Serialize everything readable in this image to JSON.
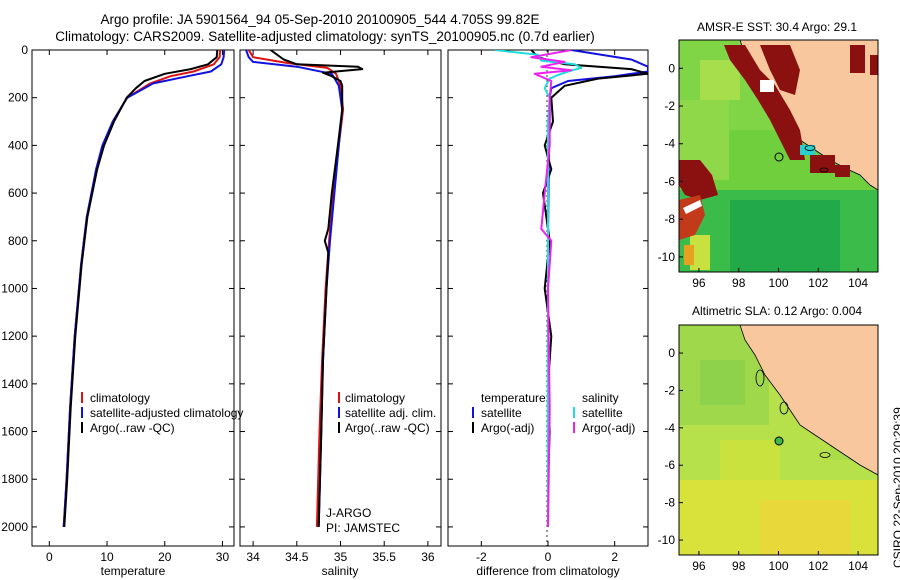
{
  "header": {
    "title_line1": "Argo profile: JA 5901564_94 05-Sep-2010 20100905_544 4.705S 99.82E",
    "title_line2": "Climatology: CARS2009. Satellite-adjusted climatology: synTS_20100905.nc (0.7d earlier)"
  },
  "footer": {
    "stamp": "CSIRO 22-Sep-2010 20:29:39"
  },
  "colors": {
    "climatology": "#dd1111",
    "satellite": "#1111dd",
    "argo": "#000000",
    "satellite_salinity_diff": "#22dddd",
    "argo_adj_diff": "#ee22ee",
    "land": "#f9c79e"
  },
  "chart_data": [
    {
      "type": "line",
      "panel": "temperature",
      "xlabel": "temperature",
      "ylabel": "",
      "xlim": [
        -3,
        32
      ],
      "ylim": [
        2080,
        0
      ],
      "y_reversed": true,
      "xticks": [
        0,
        10,
        20,
        30
      ],
      "xtick_labels": [
        "0",
        "10",
        "20",
        "30"
      ],
      "yticks": [
        0,
        200,
        400,
        600,
        800,
        1000,
        1200,
        1400,
        1600,
        1800,
        2000
      ],
      "ytick_labels": [
        "0",
        "200",
        "400",
        "600",
        "800",
        "1000",
        "1200",
        "1400",
        "1600",
        "1800",
        "2000"
      ],
      "legend": [
        "climatology",
        "satellite-adjusted climatology",
        "Argo(..raw -QC)"
      ],
      "series": [
        {
          "name": "climatology",
          "color": "#dd1111",
          "depth": [
            0,
            30,
            60,
            90,
            110,
            140,
            200,
            300,
            400,
            500,
            700,
            900,
            1200,
            1500,
            1800,
            2000
          ],
          "values": [
            29.6,
            29.5,
            28.5,
            25,
            21,
            17.5,
            13.5,
            11,
            9.3,
            8.2,
            6.5,
            5.5,
            4.4,
            3.6,
            3,
            2.5
          ]
        },
        {
          "name": "satellite-adjusted climatology",
          "color": "#1111dd",
          "depth": [
            0,
            30,
            60,
            90,
            110,
            140,
            200,
            300,
            400,
            500,
            700,
            900,
            1200,
            1500,
            1800,
            2000
          ],
          "values": [
            30.3,
            30.2,
            29.8,
            28,
            24,
            18,
            13.5,
            11,
            9.2,
            8.1,
            6.5,
            5.5,
            4.4,
            3.6,
            3,
            2.5
          ]
        },
        {
          "name": "Argo(..raw -QC)",
          "color": "#000000",
          "depth": [
            0,
            30,
            60,
            80,
            100,
            130,
            160,
            200,
            300,
            400,
            500,
            700,
            900,
            1200,
            1500,
            1800,
            2000
          ],
          "values": [
            29.1,
            29,
            27.5,
            24.5,
            20,
            16.5,
            15,
            13.4,
            11.2,
            9.5,
            8.3,
            6.6,
            5.6,
            4.5,
            3.7,
            3.1,
            2.6
          ]
        }
      ]
    },
    {
      "type": "line",
      "panel": "salinity",
      "xlabel": "salinity",
      "xlim": [
        33.85,
        36.15
      ],
      "ylim": [
        2080,
        0
      ],
      "y_reversed": true,
      "xticks": [
        34,
        34.5,
        35,
        35.5,
        36
      ],
      "xtick_labels": [
        "34",
        "34.5",
        "35",
        "35.5",
        "36"
      ],
      "legend": [
        "climatology",
        "satellite adj. clim.",
        "Argo(..raw -QC)"
      ],
      "annotations": [
        "J-ARGO",
        "PI: JAMSTEC"
      ],
      "series": [
        {
          "name": "climatology",
          "color": "#dd1111",
          "depth": [
            0,
            30,
            55,
            75,
            100,
            150,
            250,
            400,
            600,
            800,
            1000,
            1300,
            1600,
            2000
          ],
          "values": [
            33.95,
            34.0,
            34.4,
            34.85,
            34.95,
            35.0,
            35.03,
            34.98,
            34.92,
            34.87,
            34.83,
            34.79,
            34.76,
            34.73
          ]
        },
        {
          "name": "satellite adj. clim.",
          "color": "#1111dd",
          "depth": [
            0,
            30,
            50,
            70,
            100,
            150,
            250,
            400,
            600,
            800,
            1000,
            1300,
            1600,
            2000
          ],
          "values": [
            33.92,
            33.95,
            34.0,
            34.5,
            34.9,
            34.98,
            35.02,
            34.98,
            34.93,
            34.88,
            34.84,
            34.8,
            34.78,
            34.75
          ]
        },
        {
          "name": "Argo(..raw -QC)",
          "color": "#000000",
          "depth": [
            0,
            40,
            60,
            70,
            80,
            90,
            95,
            110,
            130,
            150,
            250,
            400,
            600,
            750,
            800,
            850,
            1000,
            1300,
            1600,
            2000
          ],
          "values": [
            34.2,
            34.35,
            34.5,
            35.2,
            35.25,
            34.95,
            34.8,
            34.9,
            35.0,
            35.02,
            35.02,
            34.97,
            34.9,
            34.86,
            34.82,
            34.86,
            34.84,
            34.8,
            34.78,
            34.75
          ]
        }
      ]
    },
    {
      "type": "line",
      "panel": "difference",
      "xlabel": "difference from climatology",
      "xlim": [
        -3,
        3
      ],
      "ylim": [
        2080,
        0
      ],
      "y_reversed": true,
      "xticks": [
        -2,
        0,
        2
      ],
      "xtick_labels": [
        "-2",
        "0",
        "2"
      ],
      "legend_groups": [
        {
          "heading": "temperature",
          "items": [
            "satellite",
            "Argo(-adj)"
          ]
        },
        {
          "heading": "salinity",
          "items": [
            "satellite",
            "Argo(-adj)"
          ]
        }
      ],
      "series": [
        {
          "name": "temperature satellite",
          "color": "#1111dd",
          "depth": [
            0,
            40,
            70,
            90,
            110,
            130,
            160,
            200,
            300,
            500,
            800,
            1200,
            1600,
            2000
          ],
          "values": [
            0.7,
            2.5,
            3.0,
            3.0,
            2.0,
            0.6,
            0.1,
            0.05,
            0.05,
            0.02,
            0,
            0,
            0,
            0
          ]
        },
        {
          "name": "temperature Argo(-adj)",
          "color": "#000000",
          "depth": [
            0,
            30,
            60,
            80,
            100,
            120,
            150,
            200,
            300,
            400,
            500,
            600,
            800,
            1000,
            1200,
            1400,
            1600,
            1800,
            2000
          ],
          "values": [
            -0.5,
            -0.3,
            0.5,
            2.5,
            3.0,
            1.5,
            0.5,
            0.1,
            0.15,
            -0.1,
            0.1,
            -0.15,
            0.05,
            -0.1,
            0.1,
            0,
            0.05,
            0,
            0
          ]
        },
        {
          "name": "salinity satellite",
          "color": "#22dddd",
          "depth": [
            0,
            20,
            45,
            60,
            75,
            90,
            105,
            120,
            160,
            200,
            300,
            500,
            800,
            1200,
            1600,
            2000
          ],
          "values": [
            -1.6,
            -0.3,
            -0.2,
            0.8,
            1.0,
            0.6,
            0.3,
            0.05,
            -0.1,
            0.05,
            0,
            0,
            0,
            0,
            0,
            0
          ]
        },
        {
          "name": "salinity Argo(-adj)",
          "color": "#ee22ee",
          "depth": [
            0,
            30,
            50,
            70,
            85,
            100,
            130,
            200,
            400,
            600,
            750,
            800,
            1000,
            1500,
            2000
          ],
          "values": [
            0.7,
            -0.5,
            0.5,
            -0.2,
            0.7,
            -0.4,
            0.1,
            0.05,
            0.05,
            -0.1,
            -0.2,
            0.1,
            0,
            0.05,
            0
          ]
        }
      ]
    }
  ],
  "maps": [
    {
      "name": "sst",
      "title": "AMSR-E SST: 30.4 Argo: 29.1",
      "xticks": [
        "96",
        "98",
        "100",
        "102",
        "104"
      ],
      "yticks": [
        "0",
        "-2",
        "-4",
        "-6",
        "-8",
        "-10"
      ],
      "lon_range": [
        95,
        105
      ],
      "lat_range": [
        -10.8,
        1.5
      ],
      "argo_position": {
        "lon": 99.82,
        "lat": -4.705
      }
    },
    {
      "name": "sla",
      "title": "Altimetric SLA: 0.12 Argo: 0.004",
      "xticks": [
        "96",
        "98",
        "100",
        "102",
        "104"
      ],
      "yticks": [
        "0",
        "-2",
        "-4",
        "-6",
        "-8",
        "-10"
      ],
      "lon_range": [
        95,
        105
      ],
      "lat_range": [
        -10.8,
        1.5
      ],
      "argo_position": {
        "lon": 99.82,
        "lat": -4.705
      }
    }
  ]
}
